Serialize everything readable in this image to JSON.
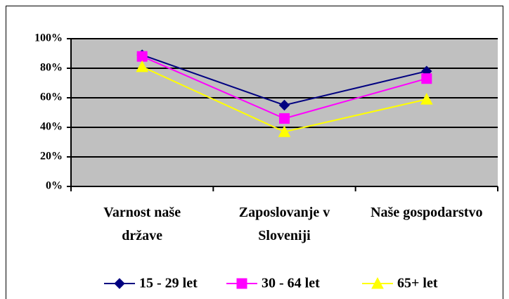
{
  "chart_data": {
    "type": "line",
    "categories": [
      "Varnost naše države",
      "Zaposlovanje v Sloveniji",
      "Naše gospodarstvo"
    ],
    "series": [
      {
        "name": "15 - 29 let",
        "color": "#000080",
        "marker": "diamond",
        "values": [
          89,
          55,
          78
        ]
      },
      {
        "name": "30 - 64 let",
        "color": "#ff00ff",
        "marker": "square",
        "values": [
          88,
          46,
          73
        ]
      },
      {
        "name": "65+ let",
        "color": "#ffff00",
        "marker": "triangle",
        "values": [
          81,
          37,
          59
        ]
      }
    ],
    "ylim": [
      0,
      100
    ],
    "yticks": [
      {
        "value": 0,
        "label": "0%"
      },
      {
        "value": 20,
        "label": "20%"
      },
      {
        "value": 40,
        "label": "40%"
      },
      {
        "value": 60,
        "label": "60%"
      },
      {
        "value": 80,
        "label": "80%"
      },
      {
        "value": 100,
        "label": "100%"
      }
    ],
    "grid": true,
    "plot_background": "#c0c0c0",
    "legend": "bottom"
  }
}
